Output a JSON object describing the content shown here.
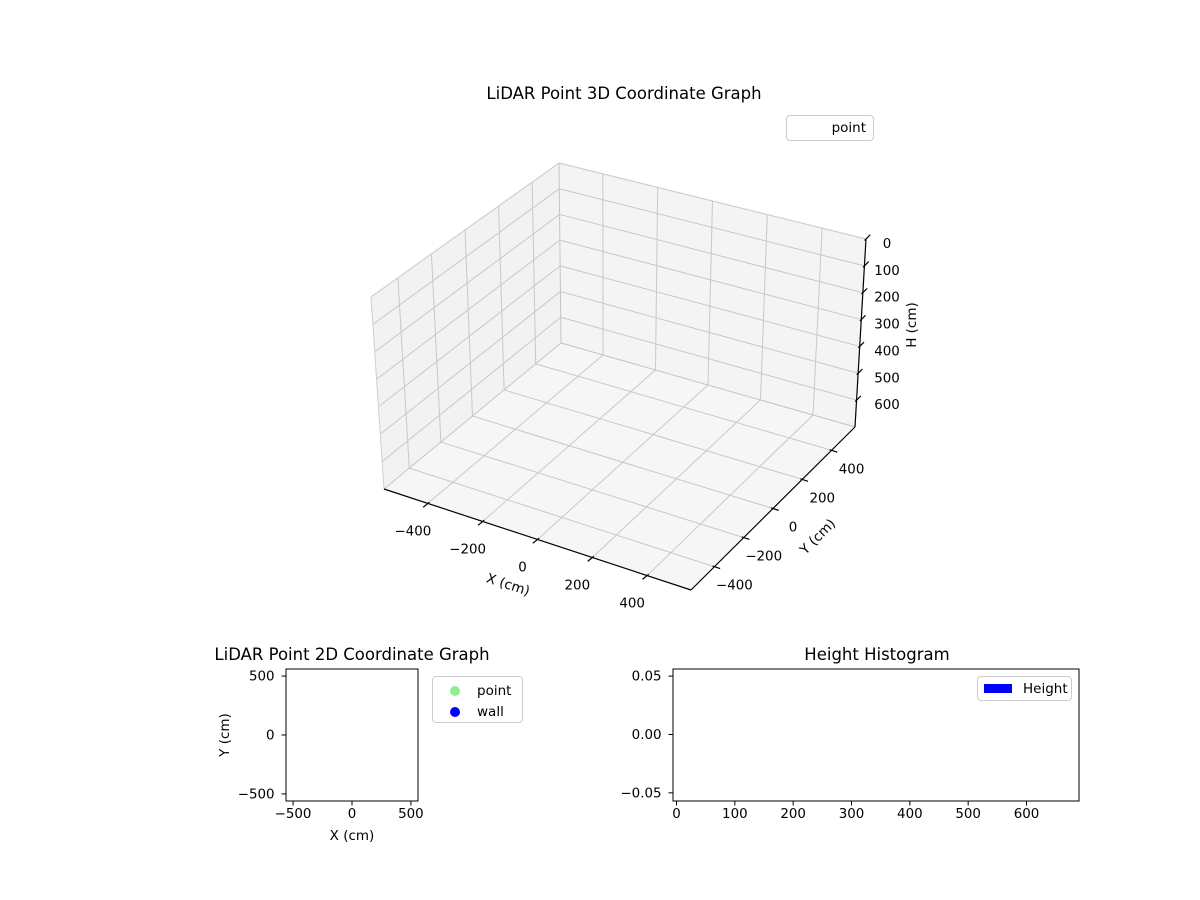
{
  "figure": {
    "background": "#ffffff"
  },
  "chart_data": [
    {
      "id": "plot3d",
      "type": "scatter3d",
      "title": "LiDAR Point 3D Coordinate Graph",
      "xlabel": "X (cm)",
      "ylabel": "Y (cm)",
      "zlabel": "H (cm)",
      "x_ticks": [
        -400,
        -200,
        0,
        200,
        400
      ],
      "y_ticks": [
        -400,
        -200,
        0,
        200,
        400
      ],
      "z_ticks": [
        0,
        100,
        200,
        300,
        400,
        500,
        600
      ],
      "xlim": [
        -560,
        560
      ],
      "ylim": [
        -560,
        560
      ],
      "zlim": [
        0,
        700
      ],
      "z_axis_inverted": true,
      "grid": true,
      "legend": {
        "position": "upper right",
        "entries": [
          {
            "label": "point",
            "marker": "none"
          }
        ]
      },
      "series": [
        {
          "name": "point",
          "points": []
        }
      ]
    },
    {
      "id": "plot2d",
      "type": "scatter",
      "title": "LiDAR Point 2D Coordinate Graph",
      "xlabel": "X (cm)",
      "ylabel": "Y (cm)",
      "x_ticks": [
        -500,
        0,
        500
      ],
      "y_ticks": [
        -500,
        0,
        500
      ],
      "xlim": [
        -560,
        560
      ],
      "ylim": [
        -560,
        560
      ],
      "grid": false,
      "legend": {
        "position": "outside upper right",
        "entries": [
          {
            "label": "point",
            "marker": "circle",
            "color": "#90ee90"
          },
          {
            "label": "wall",
            "marker": "circle",
            "color": "#0000ff"
          }
        ]
      },
      "series": [
        {
          "name": "point",
          "points": []
        },
        {
          "name": "wall",
          "points": []
        }
      ]
    },
    {
      "id": "histogram",
      "type": "histogram",
      "title": "Height Histogram",
      "x_ticks": [
        0,
        100,
        200,
        300,
        400,
        500,
        600
      ],
      "y_ticks": [
        -0.05,
        0,
        0.05
      ],
      "y_tick_labels": [
        "−0.05",
        "0.00",
        "0.05"
      ],
      "xlim": [
        -6,
        690
      ],
      "ylim": [
        -0.057,
        0.0561
      ],
      "grid": false,
      "legend": {
        "position": "upper right",
        "entries": [
          {
            "label": "Height",
            "marker": "rect",
            "color": "#0000ff"
          }
        ]
      },
      "values": []
    }
  ]
}
